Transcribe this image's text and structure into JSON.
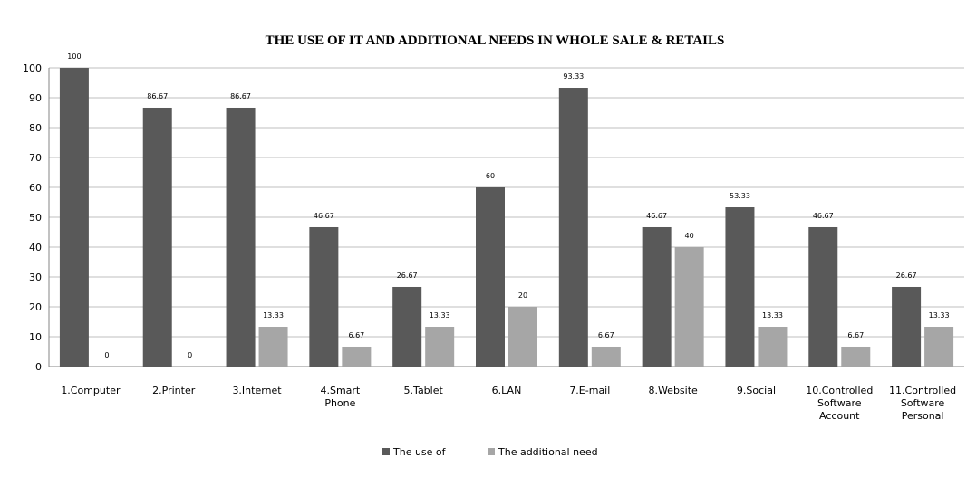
{
  "chart_data": {
    "type": "bar",
    "title": "THE USE OF IT AND ADDITIONAL  NEEDS IN WHOLE SALE & RETAILS",
    "xlabel": "",
    "ylabel": "",
    "ylim": [
      0,
      100
    ],
    "yticks": [
      0,
      10,
      20,
      30,
      40,
      50,
      60,
      70,
      80,
      90,
      100
    ],
    "grid": true,
    "legend_position": "bottom",
    "categories": [
      [
        "1.Computer"
      ],
      [
        "2.Printer"
      ],
      [
        "3.Internet"
      ],
      [
        "4.Smart",
        "Phone"
      ],
      [
        "5.Tablet"
      ],
      [
        "6.LAN"
      ],
      [
        "7.E-mail"
      ],
      [
        "8.Website"
      ],
      [
        "9.Social"
      ],
      [
        "10.Controlled",
        "Software",
        "Account"
      ],
      [
        "11.Controlled",
        "Software",
        "Personal"
      ]
    ],
    "series": [
      {
        "name": "The use of",
        "color": "#595959",
        "values": [
          100,
          86.67,
          86.67,
          46.67,
          26.67,
          60,
          93.33,
          46.67,
          53.33,
          46.67,
          26.67
        ],
        "labels": [
          "100",
          "86.67",
          "86.67",
          "46.67",
          "26.67",
          "60",
          "93.33",
          "46.67",
          "53.33",
          "46.67",
          "26.67"
        ]
      },
      {
        "name": "The additional  need",
        "color": "#a6a6a6",
        "values": [
          0,
          0,
          13.33,
          6.67,
          13.33,
          20,
          6.67,
          40,
          13.33,
          6.67,
          13.33
        ],
        "labels": [
          "0",
          "0",
          "13.33",
          "6.67",
          "13.33",
          "20",
          "6.67",
          "40",
          "13.33",
          "6.67",
          "13.33"
        ]
      }
    ]
  }
}
